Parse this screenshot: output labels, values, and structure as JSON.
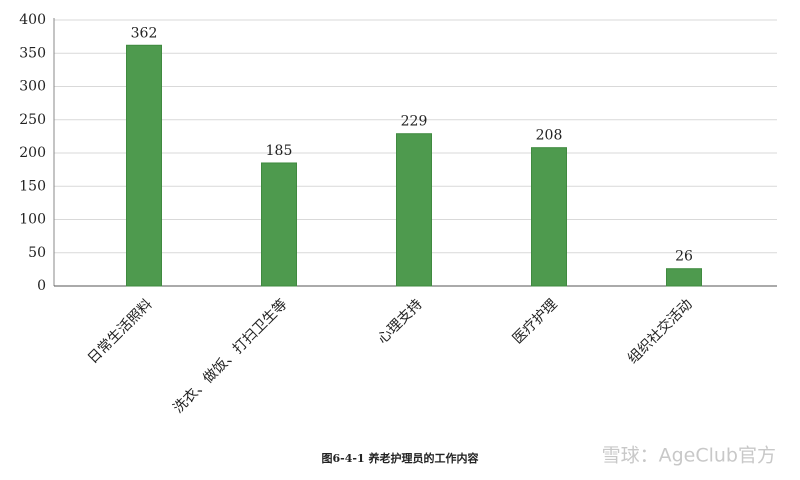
{
  "chart_data": {
    "type": "bar",
    "caption": "图6-4-1 养老护理员的工作内容",
    "categories": [
      "日常生活照料",
      "洗衣、做饭、打扫卫生等",
      "心理支持",
      "医疗护理",
      "组织社交活动"
    ],
    "values": [
      362,
      185,
      229,
      208,
      26
    ],
    "color": "#4e9a4e",
    "ylim": [
      0,
      400
    ],
    "yticks": [
      0,
      50,
      100,
      150,
      200,
      250,
      300,
      350,
      400
    ],
    "grid": true
  },
  "watermark": "雪球：AgeClub官方"
}
